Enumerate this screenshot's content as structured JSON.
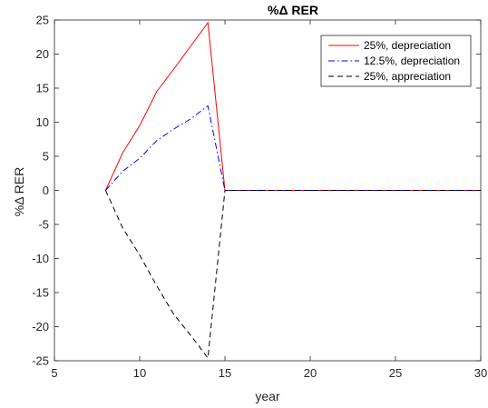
{
  "chart_data": {
    "type": "line",
    "title": "%Δ RER",
    "xlabel": "year",
    "ylabel": "%Δ RER",
    "xlim": [
      5,
      30
    ],
    "ylim": [
      -25,
      25
    ],
    "xticks": [
      5,
      10,
      15,
      20,
      25,
      30
    ],
    "yticks": [
      -25,
      -20,
      -15,
      -10,
      -5,
      0,
      5,
      10,
      15,
      20,
      25
    ],
    "grid": false,
    "legend_position": "top-right",
    "series": [
      {
        "name": "25%, depreciation",
        "color": "#ff0000",
        "style": "solid",
        "x": [
          8,
          9,
          10,
          11,
          12,
          13,
          14,
          15,
          16,
          17,
          18,
          19,
          20,
          21,
          22,
          23,
          24,
          25,
          26,
          27,
          28,
          29,
          30
        ],
        "y": [
          0,
          5.5,
          9.5,
          14.5,
          17.8,
          21.2,
          24.6,
          0,
          0,
          0,
          0,
          0,
          0,
          0,
          0,
          0,
          0,
          0,
          0,
          0,
          0,
          0,
          0
        ]
      },
      {
        "name": "12.5%, depreciation",
        "color": "#0000ff",
        "style": "dashdot",
        "x": [
          8,
          9,
          10,
          11,
          12,
          13,
          14,
          15,
          16,
          17,
          18,
          19,
          20,
          21,
          22,
          23,
          24,
          25,
          26,
          27,
          28,
          29,
          30
        ],
        "y": [
          0,
          2.8,
          4.7,
          7.3,
          9.0,
          10.5,
          12.4,
          0,
          0,
          0,
          0,
          0,
          0,
          0,
          0,
          0,
          0,
          0,
          0,
          0,
          0,
          0,
          0
        ]
      },
      {
        "name": "25%, appreciation",
        "color": "#000000",
        "style": "dashed",
        "x": [
          8,
          9,
          10,
          11,
          12,
          13,
          14,
          15,
          16,
          17,
          18,
          19,
          20,
          21,
          22,
          23,
          24,
          25,
          26,
          27,
          28,
          29,
          30
        ],
        "y": [
          0,
          -5.5,
          -9.5,
          -14,
          -18.2,
          -21.3,
          -24.6,
          0,
          0,
          0,
          0,
          0,
          0,
          0,
          0,
          0,
          0,
          0,
          0,
          0,
          0,
          0,
          0
        ]
      }
    ]
  }
}
